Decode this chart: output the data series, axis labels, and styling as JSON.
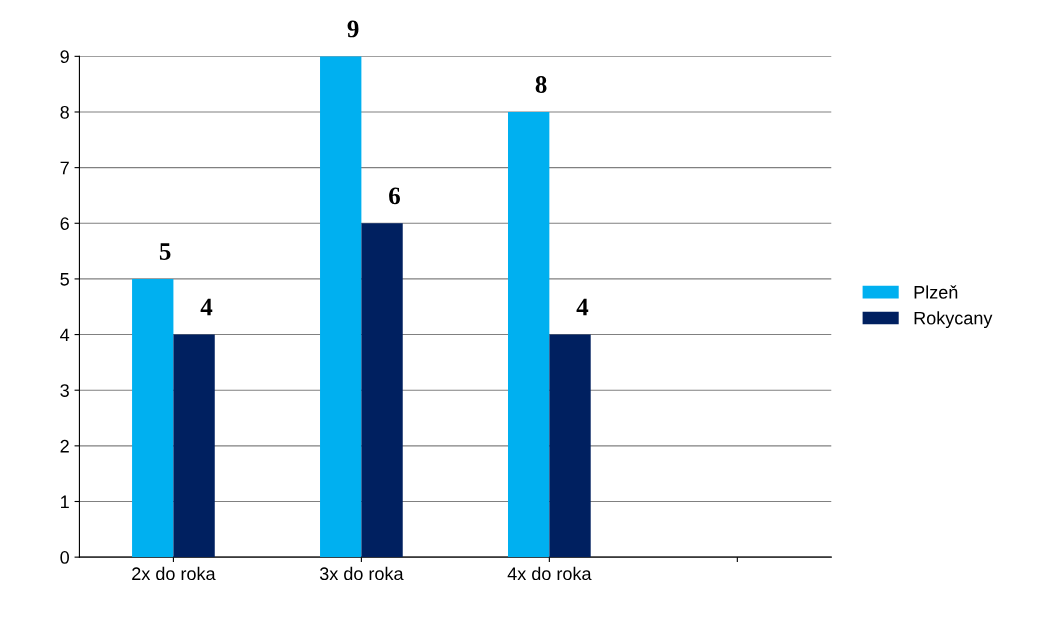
{
  "chart_data": {
    "type": "bar",
    "categories": [
      "2x do roka",
      "3x do roka",
      "4x do roka",
      null
    ],
    "series": [
      {
        "name": "Plzeň",
        "color": "#00b0f0",
        "values": [
          5,
          9,
          8,
          null
        ]
      },
      {
        "name": "Rokycany",
        "color": "#002060",
        "values": [
          4,
          6,
          4,
          null
        ]
      }
    ],
    "ylim": [
      0,
      9
    ],
    "yticks": [
      0,
      1,
      2,
      3,
      4,
      5,
      6,
      7,
      8,
      9
    ],
    "grid": "y",
    "legend": "right",
    "data_labels": true
  }
}
